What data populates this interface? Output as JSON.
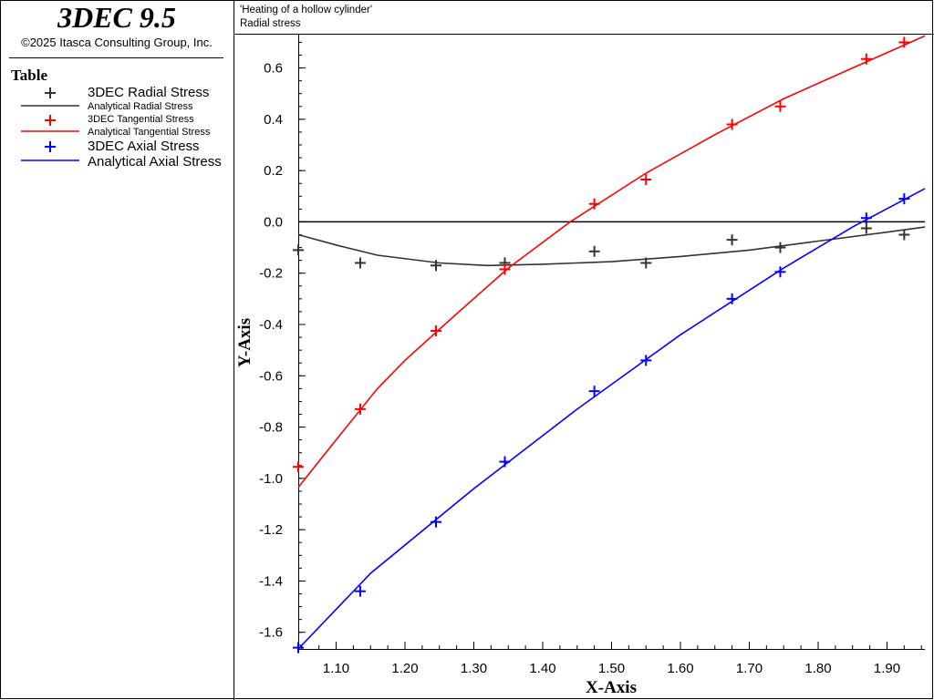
{
  "app": {
    "name": "3DEC 9.5",
    "copyright": "©2025 Itasca Consulting Group, Inc."
  },
  "legend": {
    "title": "Table",
    "items": [
      {
        "label": "3DEC Radial Stress",
        "kind": "marker",
        "color": "#333333"
      },
      {
        "label": "Analytical Radial Stress",
        "kind": "line",
        "color": "#333333"
      },
      {
        "label": "3DEC Tangential Stress",
        "kind": "marker",
        "color": "#ff0000"
      },
      {
        "label": "Analytical Tangential Stress",
        "kind": "line",
        "color": "#ff0000"
      },
      {
        "label": "3DEC Axial Stress",
        "kind": "marker",
        "color": "#0000ff"
      },
      {
        "label": "Analytical Axial Stress",
        "kind": "line",
        "color": "#0000ff"
      }
    ]
  },
  "plot": {
    "title_line1": "'Heating of a hollow cylinder'",
    "title_line2": "Radial stress"
  },
  "chart_data": {
    "type": "line",
    "xlabel": "X-Axis",
    "ylabel": "Y-Axis",
    "xlim": [
      1.045,
      1.955
    ],
    "ylim": [
      -1.665,
      0.73
    ],
    "xticks": [
      1.1,
      1.2,
      1.3,
      1.4,
      1.5,
      1.6,
      1.7,
      1.8,
      1.9
    ],
    "yticks": [
      0.6,
      0.4,
      0.2,
      0.0,
      -0.2,
      -0.4,
      -0.6,
      -0.8,
      -1.0,
      -1.2,
      -1.4,
      -1.6
    ],
    "grid": false,
    "zero_line": true,
    "series": [
      {
        "name": "3DEC Radial Stress",
        "style": "marker",
        "color": "#333333",
        "x": [
          1.045,
          1.135,
          1.245,
          1.345,
          1.475,
          1.55,
          1.675,
          1.745,
          1.87,
          1.925
        ],
        "y": [
          -0.11,
          -0.16,
          -0.17,
          -0.16,
          -0.115,
          -0.16,
          -0.07,
          -0.1,
          -0.025,
          -0.05
        ]
      },
      {
        "name": "Analytical Radial Stress",
        "style": "line",
        "color": "#333333",
        "x": [
          1.045,
          1.1,
          1.16,
          1.25,
          1.32,
          1.4,
          1.5,
          1.6,
          1.7,
          1.8,
          1.9,
          1.955
        ],
        "y": [
          -0.05,
          -0.09,
          -0.13,
          -0.16,
          -0.17,
          -0.165,
          -0.155,
          -0.135,
          -0.11,
          -0.075,
          -0.04,
          -0.02
        ]
      },
      {
        "name": "3DEC Tangential Stress",
        "style": "marker",
        "color": "#ff0000",
        "x": [
          1.045,
          1.135,
          1.245,
          1.345,
          1.475,
          1.55,
          1.675,
          1.745,
          1.87,
          1.925
        ],
        "y": [
          -0.955,
          -0.73,
          -0.425,
          -0.185,
          0.07,
          0.165,
          0.38,
          0.45,
          0.635,
          0.7
        ]
      },
      {
        "name": "Analytical Tangential Stress",
        "style": "line",
        "color": "#ff0000",
        "x": [
          1.045,
          1.1,
          1.16,
          1.2,
          1.27,
          1.35,
          1.44,
          1.55,
          1.65,
          1.75,
          1.85,
          1.955
        ],
        "y": [
          -1.035,
          -0.85,
          -0.65,
          -0.54,
          -0.37,
          -0.18,
          0.0,
          0.19,
          0.34,
          0.48,
          0.6,
          0.725
        ]
      },
      {
        "name": "3DEC Axial Stress",
        "style": "marker",
        "color": "#0000ff",
        "x": [
          1.045,
          1.135,
          1.245,
          1.345,
          1.475,
          1.55,
          1.675,
          1.745,
          1.87,
          1.925
        ],
        "y": [
          -1.66,
          -1.44,
          -1.17,
          -0.935,
          -0.66,
          -0.54,
          -0.3,
          -0.195,
          0.015,
          0.09
        ]
      },
      {
        "name": "Analytical Axial Stress",
        "style": "line",
        "color": "#0000ff",
        "x": [
          1.045,
          1.15,
          1.3,
          1.45,
          1.6,
          1.75,
          1.85,
          1.955
        ],
        "y": [
          -1.665,
          -1.37,
          -1.04,
          -0.73,
          -0.44,
          -0.18,
          -0.02,
          0.13
        ]
      }
    ]
  }
}
